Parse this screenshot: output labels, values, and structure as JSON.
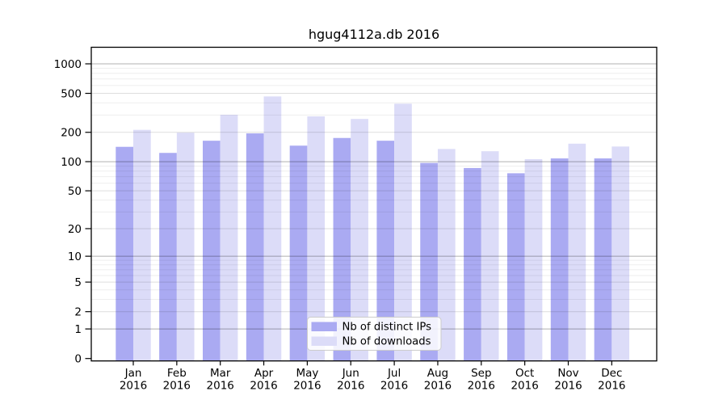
{
  "figure": {
    "background": "#ffffff",
    "border_color": "#000000"
  },
  "chart_data": {
    "type": "bar",
    "title": "hgug4112a.db 2016",
    "categories": [
      "Jan",
      "Feb",
      "Mar",
      "Apr",
      "May",
      "Jun",
      "Jul",
      "Aug",
      "Sep",
      "Oct",
      "Nov",
      "Dec"
    ],
    "x_tick_year": "2016",
    "series": [
      {
        "name": "Nb of distinct IPs",
        "color": "#aaaaf2",
        "values": [
          142,
          123,
          164,
          195,
          146,
          175,
          164,
          97,
          86,
          76,
          108,
          108
        ]
      },
      {
        "name": "Nb of downloads",
        "color": "#dcdcf8",
        "values": [
          212,
          198,
          302,
          465,
          291,
          274,
          392,
          135,
          128,
          106,
          153,
          143
        ]
      }
    ],
    "y_scale": "log1p",
    "ylim": [
      0,
      1450
    ],
    "y_ticks": [
      0,
      1,
      2,
      5,
      10,
      20,
      50,
      100,
      200,
      500,
      1000
    ],
    "y_minor_gridlines": [
      3,
      4,
      6,
      7,
      8,
      9,
      30,
      40,
      60,
      70,
      80,
      90,
      300,
      400,
      600,
      700,
      800,
      900
    ],
    "grid": true,
    "legend_position": "bottom-center"
  },
  "colors": {
    "grid_power10": "rgba(0,0,0,0.31)",
    "grid_labeled": "rgba(0,0,0,0.13)",
    "grid_minor": "rgba(0,0,0,0.065)",
    "axis": "#000000",
    "legend_border": "#cccccc",
    "legend_background": "#ffffff"
  }
}
